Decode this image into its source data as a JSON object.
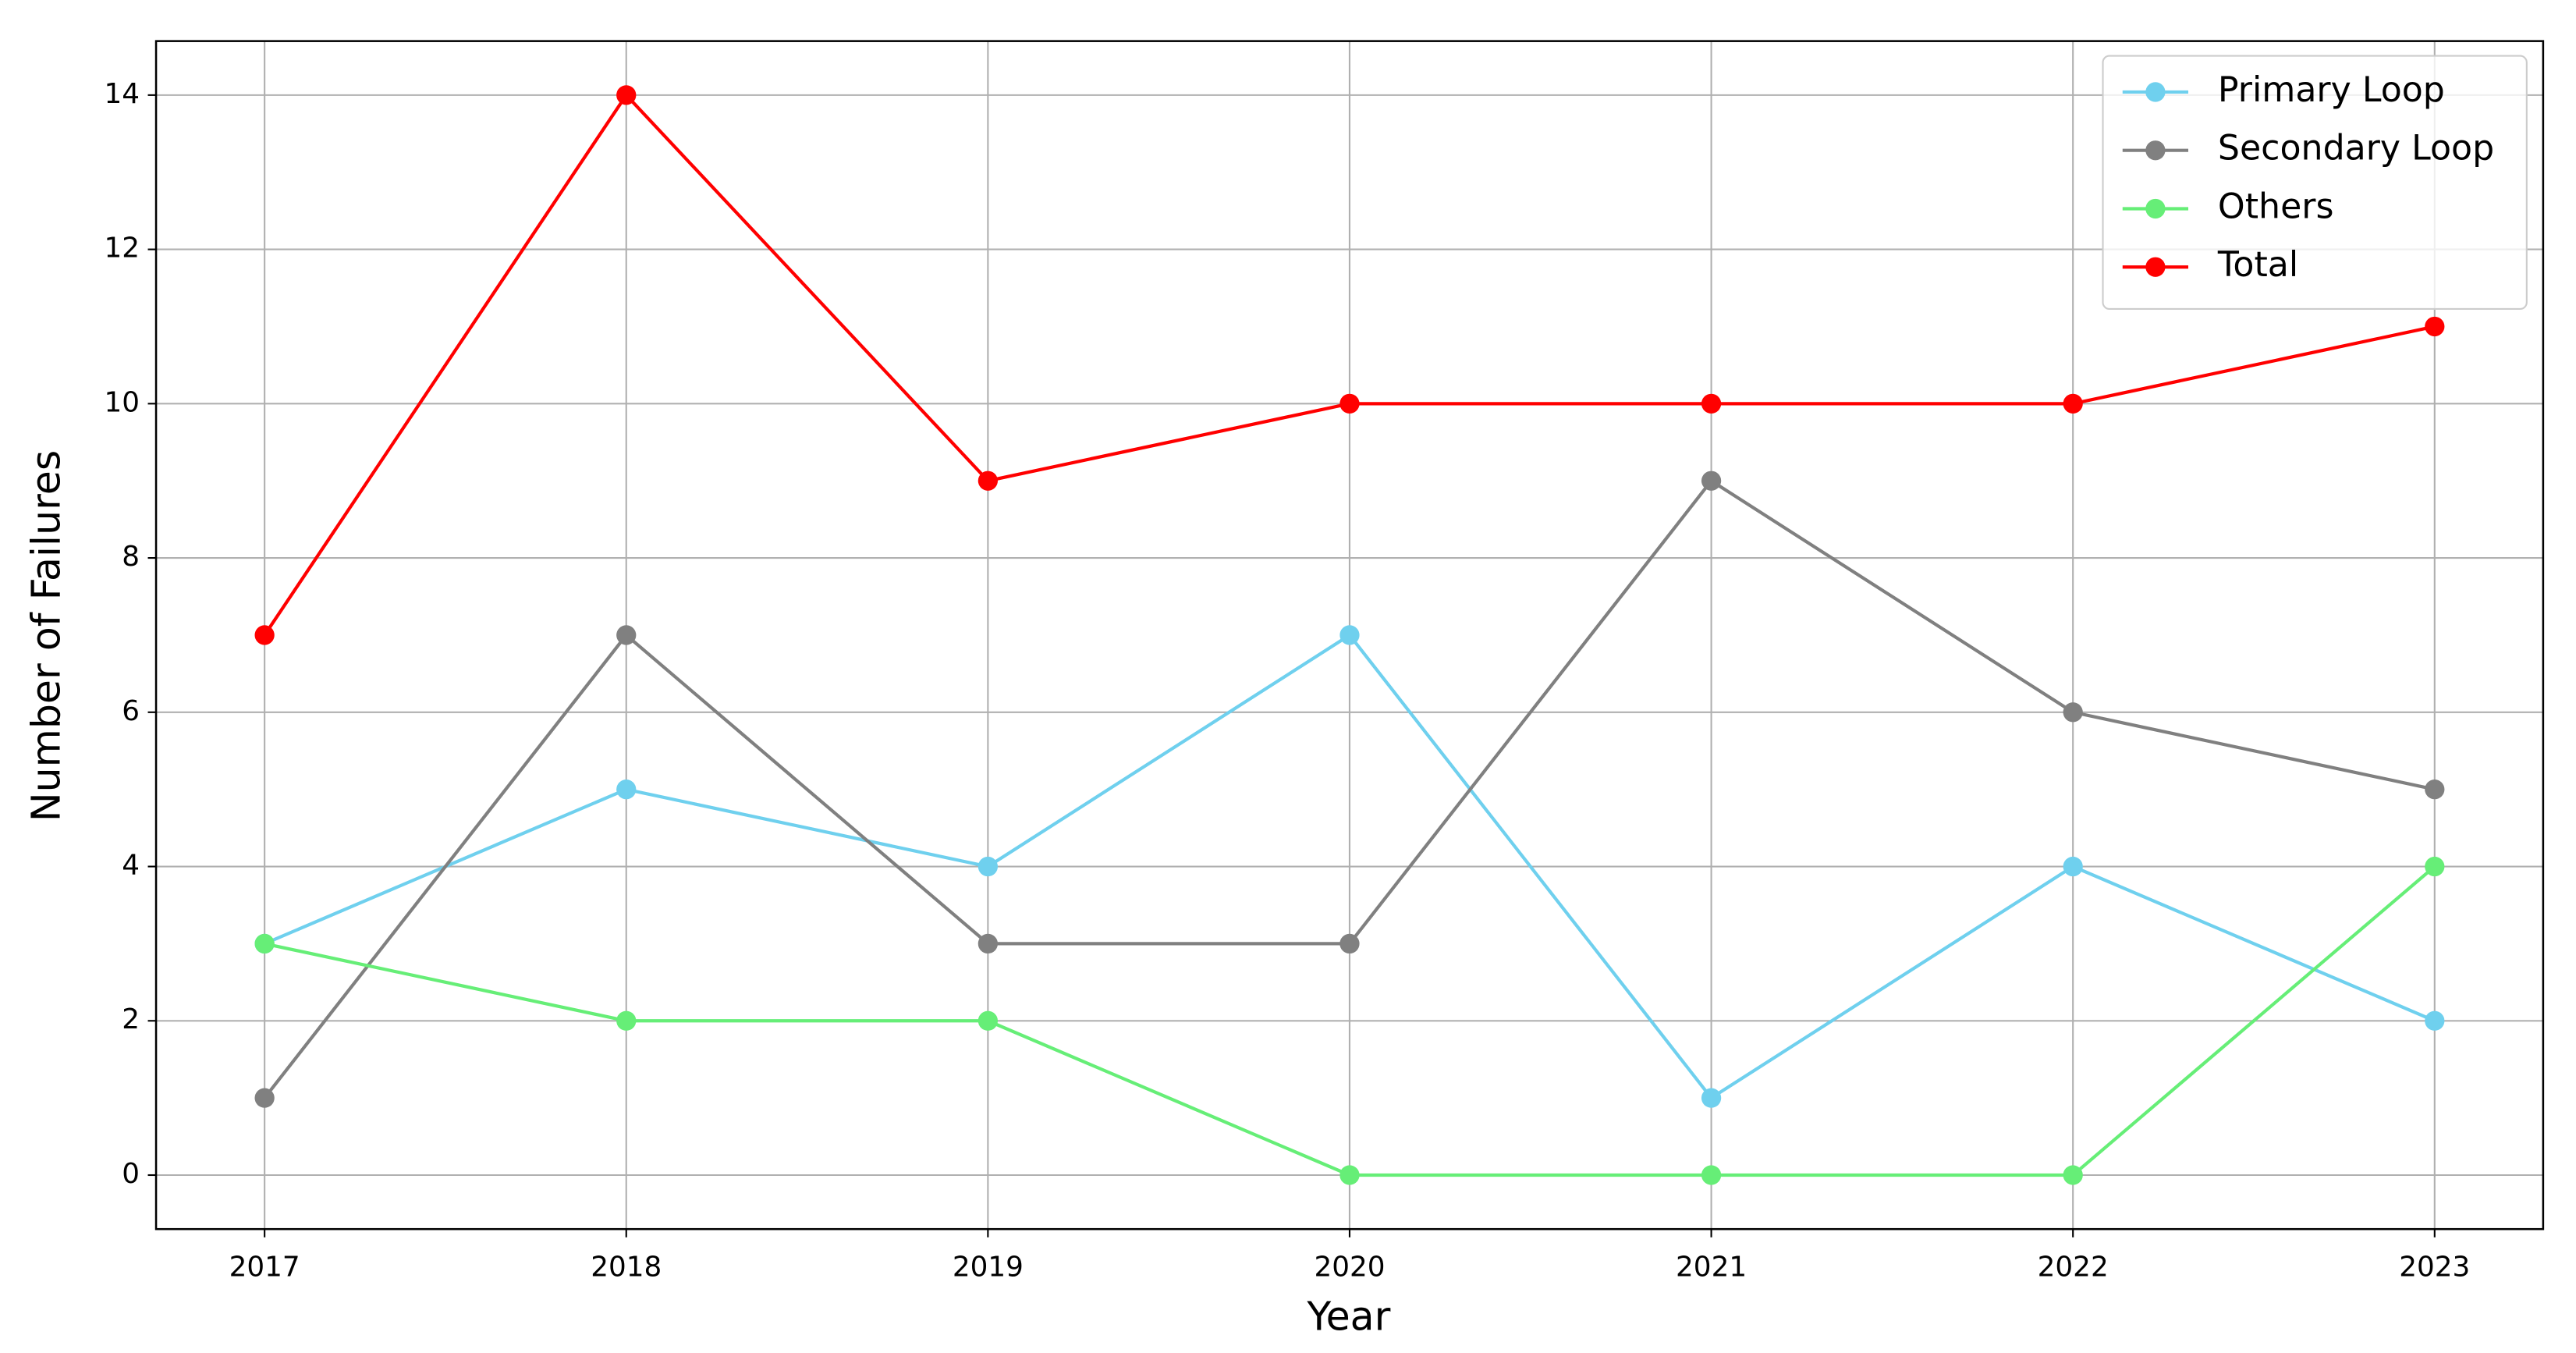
{
  "chart_data": {
    "type": "line",
    "xlabel": "Year",
    "ylabel": "Number of Failures",
    "x": [
      2017,
      2018,
      2019,
      2020,
      2021,
      2022,
      2023
    ],
    "series": [
      {
        "name": "Primary Loop",
        "color": "#6fd0ee",
        "values": [
          3,
          5,
          4,
          7,
          1,
          4,
          2
        ]
      },
      {
        "name": "Secondary Loop",
        "color": "#808080",
        "values": [
          1,
          7,
          3,
          3,
          9,
          6,
          5
        ]
      },
      {
        "name": "Others",
        "color": "#66ee77",
        "values": [
          3,
          2,
          2,
          0,
          0,
          0,
          4
        ]
      },
      {
        "name": "Total",
        "color": "#ff0000",
        "values": [
          7,
          14,
          9,
          10,
          10,
          10,
          11
        ]
      }
    ],
    "xlim": [
      2016.7,
      2023.3
    ],
    "xticks": [
      2017,
      2018,
      2019,
      2020,
      2021,
      2022,
      2023
    ],
    "ylim": [
      -0.7,
      14.7
    ],
    "yticks": [
      0,
      2,
      4,
      6,
      8,
      10,
      12,
      14
    ],
    "grid": true,
    "legend": "upper right"
  }
}
